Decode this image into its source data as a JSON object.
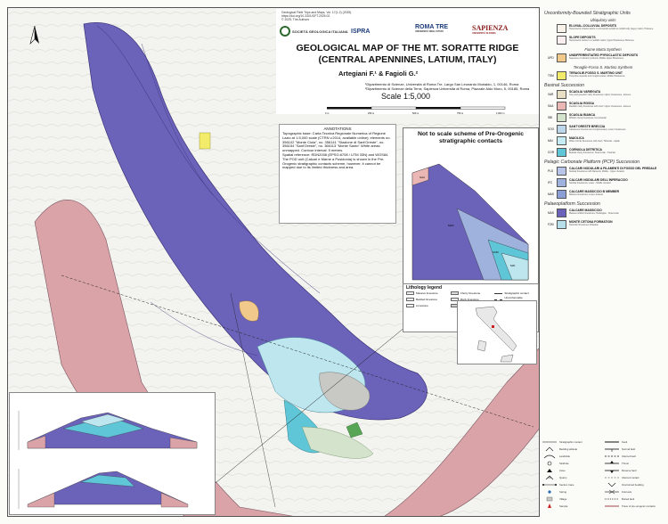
{
  "header": {
    "journal_meta": [
      "Geological Field Trips and Maps, Vol. 17(1.2) (2025)",
      "https://doi.org/10.3301/GFT.2025.02",
      "© 2025, The Authors"
    ],
    "logo_society": "SOCIETÀ GEOLOGICA ITALIANA",
    "logo_ispra": "ISPRA",
    "logo_romatre": "ROMA TRE",
    "logo_romatre_sub": "UNIVERSITÀ DEGLI STUDI",
    "logo_sapienza": "SAPIENZA",
    "logo_sapienza_sub": "UNIVERSITÀ DI ROMA",
    "title_line1": "GEOLOGICAL MAP OF THE MT. SORATTE RIDGE",
    "title_line2": "(CENTRAL APENNINES, LATIUM, ITALY)",
    "authors": "Artegiani F.¹ & Fagioli G.²",
    "affiliations": "¹Dipartimento di Scienze, Università di Roma Tre, Largo San Leonardo Murialdo, 1, 00146, Roma\n²Dipartimento di Scienze della Terra, Sapienza Università di Roma, Piazzale Aldo Moro, 5, 00185, Roma",
    "scale": "Scale 1:5,000",
    "scale_ticks": [
      "0 m",
      "250 m",
      "500 m",
      "750 m",
      "1,000 m"
    ]
  },
  "annotations": {
    "heading": "ANNOTATIONS",
    "text": "Topographic base: Carta Tecnica Regionale Numerica of Regione Lazio at 1:5,000 scale (CTRN v.2014, available online); elements no. 356102 \"Monte Ciola\", no. 356141 \"Stazione di Sant'Oreste\", no. 356154 \"Sant'Oreste\", no. 366113 \"Monte Santo\" White areas: unmapped. Contour interval: 5 metres.\nSpatial reference: RDN2008 (EPSG:6708 / UTM 33N) and WGS84.\nThe POD unit (Calcari e Marne a Posidonia) is shown in the Pre-Orogenic stratigraphic contacts scheme, however, it cannot be mapped due to its limited thickness and area."
  },
  "scheme": {
    "title": "Not to scale scheme of Pre-Orogenic stratigraphic contacts",
    "labels": [
      "SCA",
      "SAA",
      "SBI",
      "SOO",
      "MAI",
      "COR",
      "MAS"
    ]
  },
  "lithology_legend": {
    "title": "Lithology legend",
    "items": [
      "Massive limestone",
      "Cherty limestone",
      "Stratigraphic contact",
      "Bedded limestone",
      "Marly limestone",
      "Unconformable stratigraphic contact",
      "Limestone",
      "Various unmapped units",
      ""
    ]
  },
  "legend": {
    "heading_unconformity": "Unconformity-Bounded Stratigraphic Units",
    "sub_ubiquitary": "Ubiquitary units",
    "sub_marta": "Fiume Marta Synthem",
    "sub_tenaglie": "Tenaglie-Fosso S. Martino Synthem",
    "heading_basinal": "Basinal Succession",
    "heading_pcp": "Pelagic Carbonate Platform (PCP) Succession",
    "heading_paleo": "Palaeoplatform Succession",
    "units_a": [
      {
        "code": "",
        "name": "ELUVIAL-COLLUVIAL DEPOSITS",
        "desc": "Heterometric chaotic debris in a brownish reddish to reddish silty clayey matrix; Holocene",
        "color": "#f7f3ea"
      },
      {
        "code": "",
        "name": "SLOPE DEPOSITS",
        "desc": "Heterometric debris in a reddish matrix; Upper Pleistocene-Holocene",
        "color": "#fbeeee"
      }
    ],
    "units_b": [
      {
        "code": "UPD",
        "name": "UNDIFFERENTIATED PYROCLASTIC DEPOSITS",
        "desc": "Sequence of volcanic products; Middle-Upper Pleistocene",
        "color": "#f1c98a"
      }
    ],
    "units_c": [
      {
        "code": "TSM",
        "name": "TERAGLIE-FOSSO S. MARTINO UNIT",
        "desc": "Travertine deposits and conglomerates; Middle Pleistocene",
        "color": "#f2ec6a"
      }
    ],
    "units_d": [
      {
        "code": "VAR",
        "name": "SCAGLIA VARIEGATA",
        "desc": "Grey and greenish marly limestones; Upper Cretaceous - Eocene",
        "color": "#e9dfc4"
      },
      {
        "code": "SAA",
        "name": "SCAGLIA ROSSA",
        "desc": "Reddish marly limestones with chert; Upper Cretaceous - Eocene",
        "color": "#ebb7b4"
      },
      {
        "code": "SBI",
        "name": "SCAGLIA BIANCA",
        "desc": "Whitish cherty limestones; Cenomanian",
        "color": "#d4e3cc"
      },
      {
        "code": "SOO",
        "name": "SANT'ORESTE BRECCIA",
        "desc": "Calcareous breccias and conglomerates; Lower Cretaceous",
        "color": "#bdd7ea"
      },
      {
        "code": "MAI",
        "name": "MAIOLICA",
        "desc": "White micritic limestones with chert; Tithonian - Aptian",
        "color": "#c6ecf4"
      },
      {
        "code": "COR",
        "name": "CORNIOLA DETRITICA",
        "desc": "Bedded cherty limestones; Sinemurian - Toarcian",
        "color": "#5fc6d8"
      }
    ],
    "units_e": [
      {
        "code": "PLD",
        "name": "CALCARI NODULARI A FILAMENTI DI FOSSO DEL PREDALE",
        "desc": "Nodular limestones with filaments; Middle - Upper Jurassic",
        "color": "#b8c4e8"
      },
      {
        "code": "IFC",
        "name": "CALCARI NODULARI DELL'INFERACCIO",
        "desc": "Nodular limestones; Lower - Middle Jurassic",
        "color": "#9fb2de"
      },
      {
        "code": "MAS",
        "name": "CALCARE MASSICCIO B MEMBER",
        "desc": "Massive limestones; Lower Jurassic",
        "color": "#8b9fd6"
      }
    ],
    "units_f": [
      {
        "code": "MAS",
        "name": "CALCARE MASSICCIO",
        "desc": "Massive whitish limestones; Hettangian - Sinemurian",
        "color": "#6b62ba"
      },
      {
        "code": "FZM",
        "name": "MONTE CETONA FORMATION",
        "desc": "Dolomitic limestones; Rhaetian",
        "color": "#b7dfe9"
      }
    ],
    "symbols": [
      "Stratigraphic contact",
      "Fault",
      "Bedding attitude",
      "Normal fault",
      "Landslide",
      "Inferred fault",
      "Sinkhole",
      "Thrust",
      "Cave",
      "Reverse fault",
      "Quarry",
      "Inferred contact",
      "Section trace",
      "Overturned bedding",
      "Spring",
      "Fold axis",
      "Village",
      "Buried fault",
      "Sample",
      "Trace of pre-orogenic contacts"
    ]
  },
  "colors": {
    "massiccio": "#6b62ba",
    "scaglia_rossa": "#d9a3a8",
    "maiolica": "#bde6ef",
    "corniola": "#5fc6d8",
    "pyroclastic": "#f1c98a",
    "unmapped": "#f3f3ef"
  }
}
